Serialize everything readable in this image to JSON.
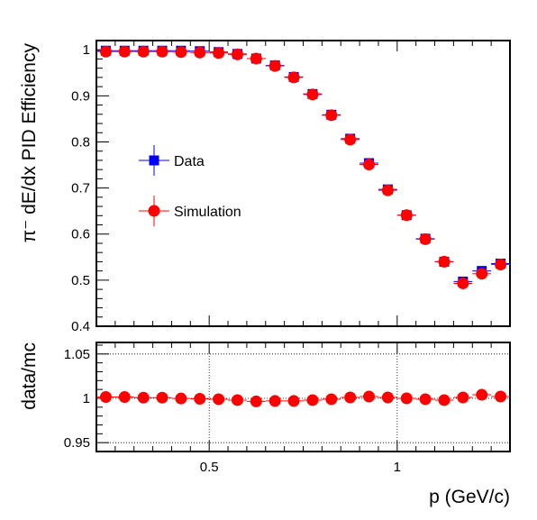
{
  "chart_data": [
    {
      "type": "scatter",
      "title": "",
      "xlabel": "p (GeV/c)",
      "ylabel": "π⁻ dE/dx PID Efficiency",
      "xlim": [
        0.2,
        1.3
      ],
      "ylim": [
        0.4,
        1.02
      ],
      "yticks": [
        {
          "value": 0.4,
          "label": "0.4"
        },
        {
          "value": 0.5,
          "label": "0.5"
        },
        {
          "value": 0.6,
          "label": "0.6"
        },
        {
          "value": 0.7,
          "label": "0.7"
        },
        {
          "value": 0.8,
          "label": "0.8"
        },
        {
          "value": 0.9,
          "label": "0.9"
        },
        {
          "value": 1.0,
          "label": "1"
        }
      ],
      "legend_position": "middle-left",
      "x": [
        0.225,
        0.275,
        0.325,
        0.375,
        0.425,
        0.475,
        0.525,
        0.575,
        0.625,
        0.675,
        0.725,
        0.775,
        0.825,
        0.875,
        0.925,
        0.975,
        1.025,
        1.075,
        1.125,
        1.175,
        1.225,
        1.275
      ],
      "series": [
        {
          "name": "Data",
          "color": "#0000ff",
          "marker": "square",
          "values": [
            0.998,
            0.998,
            0.998,
            0.998,
            0.998,
            0.997,
            0.995,
            0.991,
            0.981,
            0.966,
            0.941,
            0.904,
            0.859,
            0.807,
            0.754,
            0.697,
            0.641,
            0.59,
            0.54,
            0.497,
            0.52,
            0.536
          ]
        },
        {
          "name": "Simulation",
          "color": "#ff0000",
          "marker": "circle",
          "values": [
            0.996,
            0.996,
            0.996,
            0.996,
            0.995,
            0.994,
            0.993,
            0.99,
            0.981,
            0.965,
            0.94,
            0.903,
            0.858,
            0.805,
            0.751,
            0.695,
            0.641,
            0.589,
            0.54,
            0.493,
            0.514,
            0.534
          ]
        }
      ]
    },
    {
      "type": "scatter",
      "title": "",
      "xlabel": "p (GeV/c)",
      "ylabel": "data/mc",
      "xlim": [
        0.2,
        1.3
      ],
      "ylim": [
        0.94,
        1.063
      ],
      "grid": true,
      "xticks": [
        {
          "value": 0.5,
          "label": "0.5"
        },
        {
          "value": 1.0,
          "label": "1"
        }
      ],
      "yticks": [
        {
          "value": 0.95,
          "label": "0.95"
        },
        {
          "value": 1.0,
          "label": "1"
        },
        {
          "value": 1.05,
          "label": "1.05"
        }
      ],
      "x": [
        0.225,
        0.275,
        0.325,
        0.375,
        0.425,
        0.475,
        0.525,
        0.575,
        0.625,
        0.675,
        0.725,
        0.775,
        0.825,
        0.875,
        0.925,
        0.975,
        1.025,
        1.075,
        1.125,
        1.175,
        1.225,
        1.275
      ],
      "series": [
        {
          "color": "#ff0000",
          "marker": "circle",
          "values": [
            1.0015,
            1.0015,
            1.0008,
            1.0008,
            0.9998,
            0.9995,
            0.999,
            0.998,
            0.9965,
            0.997,
            0.997,
            0.998,
            0.999,
            1.001,
            1.002,
            1.001,
            1.0,
            0.999,
            0.998,
            1.001,
            1.004,
            1.002
          ]
        }
      ]
    }
  ]
}
